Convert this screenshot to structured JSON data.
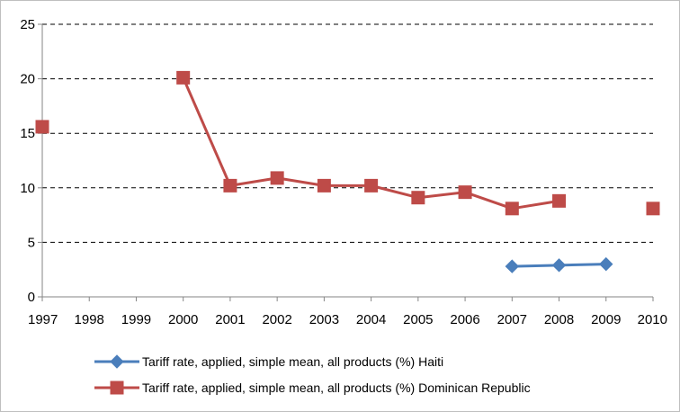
{
  "chart_data": {
    "type": "line",
    "title": "",
    "xlabel": "",
    "ylabel": "",
    "categories": [
      "1997",
      "1998",
      "1999",
      "2000",
      "2001",
      "2002",
      "2003",
      "2004",
      "2005",
      "2006",
      "2007",
      "2008",
      "2009",
      "2010"
    ],
    "ylim": [
      0,
      25
    ],
    "yticks": [
      0,
      5,
      10,
      15,
      20,
      25
    ],
    "grid": "horizontal dashed",
    "legend_position": "bottom",
    "series": [
      {
        "name": "Tariff rate, applied, simple mean, all products (%) Haiti",
        "color": "#4a7ebb",
        "marker": "diamond",
        "values": [
          null,
          null,
          null,
          null,
          null,
          null,
          null,
          null,
          null,
          null,
          2.8,
          2.9,
          3.0,
          null
        ]
      },
      {
        "name": "Tariff rate, applied, simple mean, all products (%) Dominican Republic",
        "color": "#be4b48",
        "marker": "square",
        "values": [
          15.6,
          null,
          null,
          20.1,
          10.2,
          10.9,
          10.2,
          10.2,
          9.1,
          9.6,
          8.1,
          8.8,
          null,
          8.1
        ]
      }
    ]
  }
}
